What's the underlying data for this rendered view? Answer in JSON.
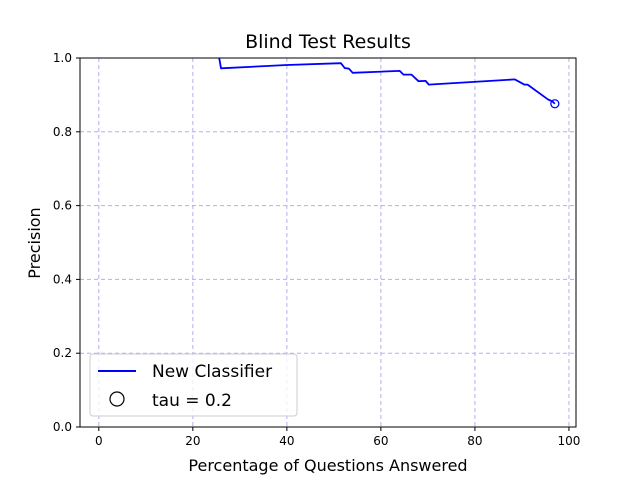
{
  "chart_data": {
    "type": "line",
    "title": "Blind Test Results",
    "xlabel": "Percentage of Questions Answered",
    "ylabel": "Precision",
    "xlim": [
      -4,
      101.5
    ],
    "ylim": [
      0,
      1
    ],
    "xticks": [
      0,
      20,
      40,
      60,
      80,
      100
    ],
    "yticks": [
      0.0,
      0.2,
      0.4,
      0.6,
      0.8,
      1.0
    ],
    "xtick_labels": [
      "0",
      "20",
      "40",
      "60",
      "80",
      "100"
    ],
    "ytick_labels": [
      "0.0",
      "0.2",
      "0.4",
      "0.6",
      "0.8",
      "1.0"
    ],
    "grid": true,
    "legend_position": "lower-left",
    "series": [
      {
        "name": "New Classifier",
        "color": "#0000ff",
        "points": [
          [
            25.0,
            1.05
          ],
          [
            25.6,
            1.0
          ],
          [
            26.0,
            0.972
          ],
          [
            40.0,
            0.981
          ],
          [
            51.5,
            0.986
          ],
          [
            52.3,
            0.973
          ],
          [
            53.2,
            0.971
          ],
          [
            54.0,
            0.96
          ],
          [
            64.0,
            0.965
          ],
          [
            64.8,
            0.955
          ],
          [
            66.5,
            0.955
          ],
          [
            68.0,
            0.937
          ],
          [
            69.5,
            0.938
          ],
          [
            70.2,
            0.928
          ],
          [
            88.5,
            0.942
          ],
          [
            90.5,
            0.928
          ],
          [
            91.2,
            0.928
          ],
          [
            95.5,
            0.888
          ],
          [
            96.5,
            0.882
          ],
          [
            97.0,
            0.876
          ]
        ]
      }
    ],
    "markers": [
      {
        "name": "tau = 0.2",
        "x": 97.0,
        "y": 0.876,
        "color": "#0000ff"
      }
    ]
  }
}
